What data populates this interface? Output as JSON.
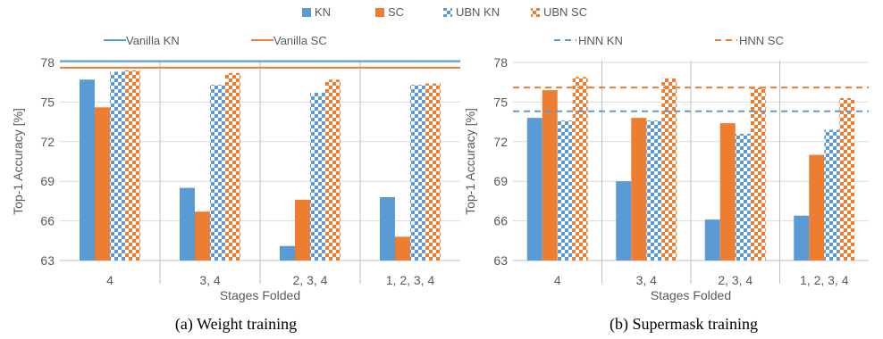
{
  "legend": {
    "bars": [
      "KN",
      "SC",
      "UBN KN",
      "UBN SC"
    ],
    "lines_a": [
      "Vanilla KN",
      "Vanilla SC"
    ],
    "lines_b": [
      "HNN KN",
      "HNN SC"
    ]
  },
  "colors": {
    "kn": "#5b9bd5",
    "sc": "#ed7d31",
    "axis": "#bfbfbf",
    "text": "#595959"
  },
  "chart_data": [
    {
      "type": "bar",
      "caption": "(a) Weight training",
      "xlabel": "Stages Folded",
      "ylabel": "Top-1 Accuracy [%]",
      "ylim": [
        63,
        78
      ],
      "yticks": [
        63,
        66,
        69,
        72,
        75,
        78
      ],
      "categories": [
        "4",
        "3, 4",
        "2, 3, 4",
        "1, 2, 3, 4"
      ],
      "series": [
        {
          "name": "KN",
          "values": [
            76.7,
            68.5,
            64.1,
            67.8
          ]
        },
        {
          "name": "SC",
          "values": [
            74.6,
            66.7,
            67.6,
            64.8
          ]
        },
        {
          "name": "UBN KN",
          "values": [
            77.3,
            76.3,
            75.7,
            76.3
          ]
        },
        {
          "name": "UBN SC",
          "values": [
            77.4,
            77.2,
            76.7,
            76.4
          ]
        }
      ],
      "reference_lines": [
        {
          "name": "Vanilla KN",
          "value": 78.1,
          "style": "solid"
        },
        {
          "name": "Vanilla SC",
          "value": 77.6,
          "style": "solid"
        }
      ]
    },
    {
      "type": "bar",
      "caption": "(b) Supermask training",
      "xlabel": "Stages Folded",
      "ylabel": "Top-1 Accuracy [%]",
      "ylim": [
        63,
        78
      ],
      "yticks": [
        63,
        66,
        69,
        72,
        75,
        78
      ],
      "categories": [
        "4",
        "3, 4",
        "2, 3, 4",
        "1, 2, 3, 4"
      ],
      "series": [
        {
          "name": "KN",
          "values": [
            73.8,
            69.0,
            66.1,
            66.4
          ]
        },
        {
          "name": "SC",
          "values": [
            75.9,
            73.8,
            73.4,
            71.0
          ]
        },
        {
          "name": "UBN KN",
          "values": [
            73.6,
            73.6,
            72.6,
            72.9
          ]
        },
        {
          "name": "UBN SC",
          "values": [
            76.9,
            76.8,
            76.1,
            75.3
          ]
        }
      ],
      "reference_lines": [
        {
          "name": "HNN KN",
          "value": 74.3,
          "style": "dashed"
        },
        {
          "name": "HNN SC",
          "value": 76.1,
          "style": "dashed"
        }
      ]
    }
  ]
}
